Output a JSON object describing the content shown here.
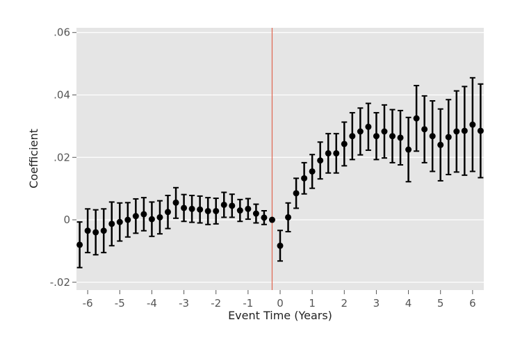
{
  "chart_data": {
    "type": "scatter",
    "xlabel": "Event Time (Years)",
    "ylabel": "Coefficient",
    "xlim": [
      -6.35,
      6.35
    ],
    "ylim": [
      -0.0225,
      0.0615
    ],
    "x_ticks": [
      -6,
      -5,
      -4,
      -3,
      -2,
      -1,
      0,
      1,
      2,
      3,
      4,
      5,
      6
    ],
    "x_tick_labels": [
      "-6",
      "-5",
      "-4",
      "-3",
      "-2",
      "-1",
      "0",
      "1",
      "2",
      "3",
      "4",
      "5",
      "6"
    ],
    "y_ticks": [
      -0.02,
      0,
      0.02,
      0.04,
      0.06
    ],
    "y_tick_labels": [
      "-.02",
      "0",
      ".02",
      ".04",
      ".06"
    ],
    "grid": true,
    "reference_line_x": -0.25,
    "colors": {
      "panel_background": "#e5e5e5",
      "grid": "#ffffff",
      "markers": "#000000",
      "reference_line": "#e0654f"
    },
    "points": [
      {
        "x": -6.25,
        "y": -0.008,
        "lo": -0.0153,
        "hi": -0.0007
      },
      {
        "x": -6.0,
        "y": -0.0035,
        "lo": -0.0105,
        "hi": 0.0035
      },
      {
        "x": -5.75,
        "y": -0.004,
        "lo": -0.0112,
        "hi": 0.0032
      },
      {
        "x": -5.5,
        "y": -0.0035,
        "lo": -0.0105,
        "hi": 0.0035
      },
      {
        "x": -5.25,
        "y": -0.0013,
        "lo": -0.0083,
        "hi": 0.0057
      },
      {
        "x": -5.0,
        "y": -0.0007,
        "lo": -0.0068,
        "hi": 0.0054
      },
      {
        "x": -4.75,
        "y": 0.0,
        "lo": -0.0055,
        "hi": 0.0055
      },
      {
        "x": -4.5,
        "y": 0.0012,
        "lo": -0.0043,
        "hi": 0.0067
      },
      {
        "x": -4.25,
        "y": 0.0018,
        "lo": -0.0035,
        "hi": 0.0071
      },
      {
        "x": -4.0,
        "y": 0.0002,
        "lo": -0.0053,
        "hi": 0.0057
      },
      {
        "x": -3.75,
        "y": 0.0008,
        "lo": -0.0045,
        "hi": 0.0061
      },
      {
        "x": -3.5,
        "y": 0.0025,
        "lo": -0.0028,
        "hi": 0.0078
      },
      {
        "x": -3.25,
        "y": 0.0055,
        "lo": 0.0005,
        "hi": 0.0103
      },
      {
        "x": -3.0,
        "y": 0.0038,
        "lo": -0.0005,
        "hi": 0.0081
      },
      {
        "x": -2.75,
        "y": 0.0035,
        "lo": -0.0008,
        "hi": 0.0078
      },
      {
        "x": -2.5,
        "y": 0.0033,
        "lo": -0.001,
        "hi": 0.0076
      },
      {
        "x": -2.25,
        "y": 0.0028,
        "lo": -0.0015,
        "hi": 0.0071
      },
      {
        "x": -2.0,
        "y": 0.0028,
        "lo": -0.0013,
        "hi": 0.0069
      },
      {
        "x": -1.75,
        "y": 0.0048,
        "lo": 0.0008,
        "hi": 0.0088
      },
      {
        "x": -1.5,
        "y": 0.0045,
        "lo": 0.0008,
        "hi": 0.0082
      },
      {
        "x": -1.25,
        "y": 0.003,
        "lo": -0.0005,
        "hi": 0.0065
      },
      {
        "x": -1.0,
        "y": 0.0035,
        "lo": 0.0002,
        "hi": 0.0068
      },
      {
        "x": -0.75,
        "y": 0.002,
        "lo": -0.001,
        "hi": 0.005
      },
      {
        "x": -0.5,
        "y": 0.0007,
        "lo": -0.0015,
        "hi": 0.0029
      },
      {
        "x": -0.25,
        "y": 0.0,
        "lo": 0.0,
        "hi": 0.0
      },
      {
        "x": 0.0,
        "y": -0.0083,
        "lo": -0.0132,
        "hi": -0.0034
      },
      {
        "x": 0.25,
        "y": 0.0008,
        "lo": -0.0038,
        "hi": 0.0054
      },
      {
        "x": 0.5,
        "y": 0.0085,
        "lo": 0.0037,
        "hi": 0.0133
      },
      {
        "x": 0.75,
        "y": 0.0133,
        "lo": 0.0083,
        "hi": 0.0183
      },
      {
        "x": 1.0,
        "y": 0.0155,
        "lo": 0.0101,
        "hi": 0.0209
      },
      {
        "x": 1.25,
        "y": 0.019,
        "lo": 0.0131,
        "hi": 0.0249
      },
      {
        "x": 1.5,
        "y": 0.0213,
        "lo": 0.015,
        "hi": 0.0276
      },
      {
        "x": 1.75,
        "y": 0.0213,
        "lo": 0.015,
        "hi": 0.0276
      },
      {
        "x": 2.0,
        "y": 0.0243,
        "lo": 0.0173,
        "hi": 0.0313
      },
      {
        "x": 2.25,
        "y": 0.0268,
        "lo": 0.0193,
        "hi": 0.0343
      },
      {
        "x": 2.5,
        "y": 0.0283,
        "lo": 0.0208,
        "hi": 0.0358
      },
      {
        "x": 2.75,
        "y": 0.0298,
        "lo": 0.0223,
        "hi": 0.0373
      },
      {
        "x": 3.0,
        "y": 0.0268,
        "lo": 0.0193,
        "hi": 0.0343
      },
      {
        "x": 3.25,
        "y": 0.0283,
        "lo": 0.0198,
        "hi": 0.0368
      },
      {
        "x": 3.5,
        "y": 0.0268,
        "lo": 0.0183,
        "hi": 0.0353
      },
      {
        "x": 3.75,
        "y": 0.0263,
        "lo": 0.0176,
        "hi": 0.035
      },
      {
        "x": 4.0,
        "y": 0.0225,
        "lo": 0.0122,
        "hi": 0.0328
      },
      {
        "x": 4.25,
        "y": 0.0325,
        "lo": 0.022,
        "hi": 0.043
      },
      {
        "x": 4.5,
        "y": 0.029,
        "lo": 0.0183,
        "hi": 0.0397
      },
      {
        "x": 4.75,
        "y": 0.0268,
        "lo": 0.0155,
        "hi": 0.0381
      },
      {
        "x": 5.0,
        "y": 0.024,
        "lo": 0.0125,
        "hi": 0.0355
      },
      {
        "x": 5.25,
        "y": 0.0265,
        "lo": 0.0145,
        "hi": 0.0385
      },
      {
        "x": 5.5,
        "y": 0.0283,
        "lo": 0.0153,
        "hi": 0.0413
      },
      {
        "x": 5.75,
        "y": 0.0285,
        "lo": 0.0143,
        "hi": 0.0427
      },
      {
        "x": 6.0,
        "y": 0.0305,
        "lo": 0.0155,
        "hi": 0.0455
      },
      {
        "x": 6.25,
        "y": 0.0285,
        "lo": 0.0135,
        "hi": 0.0435
      }
    ]
  }
}
